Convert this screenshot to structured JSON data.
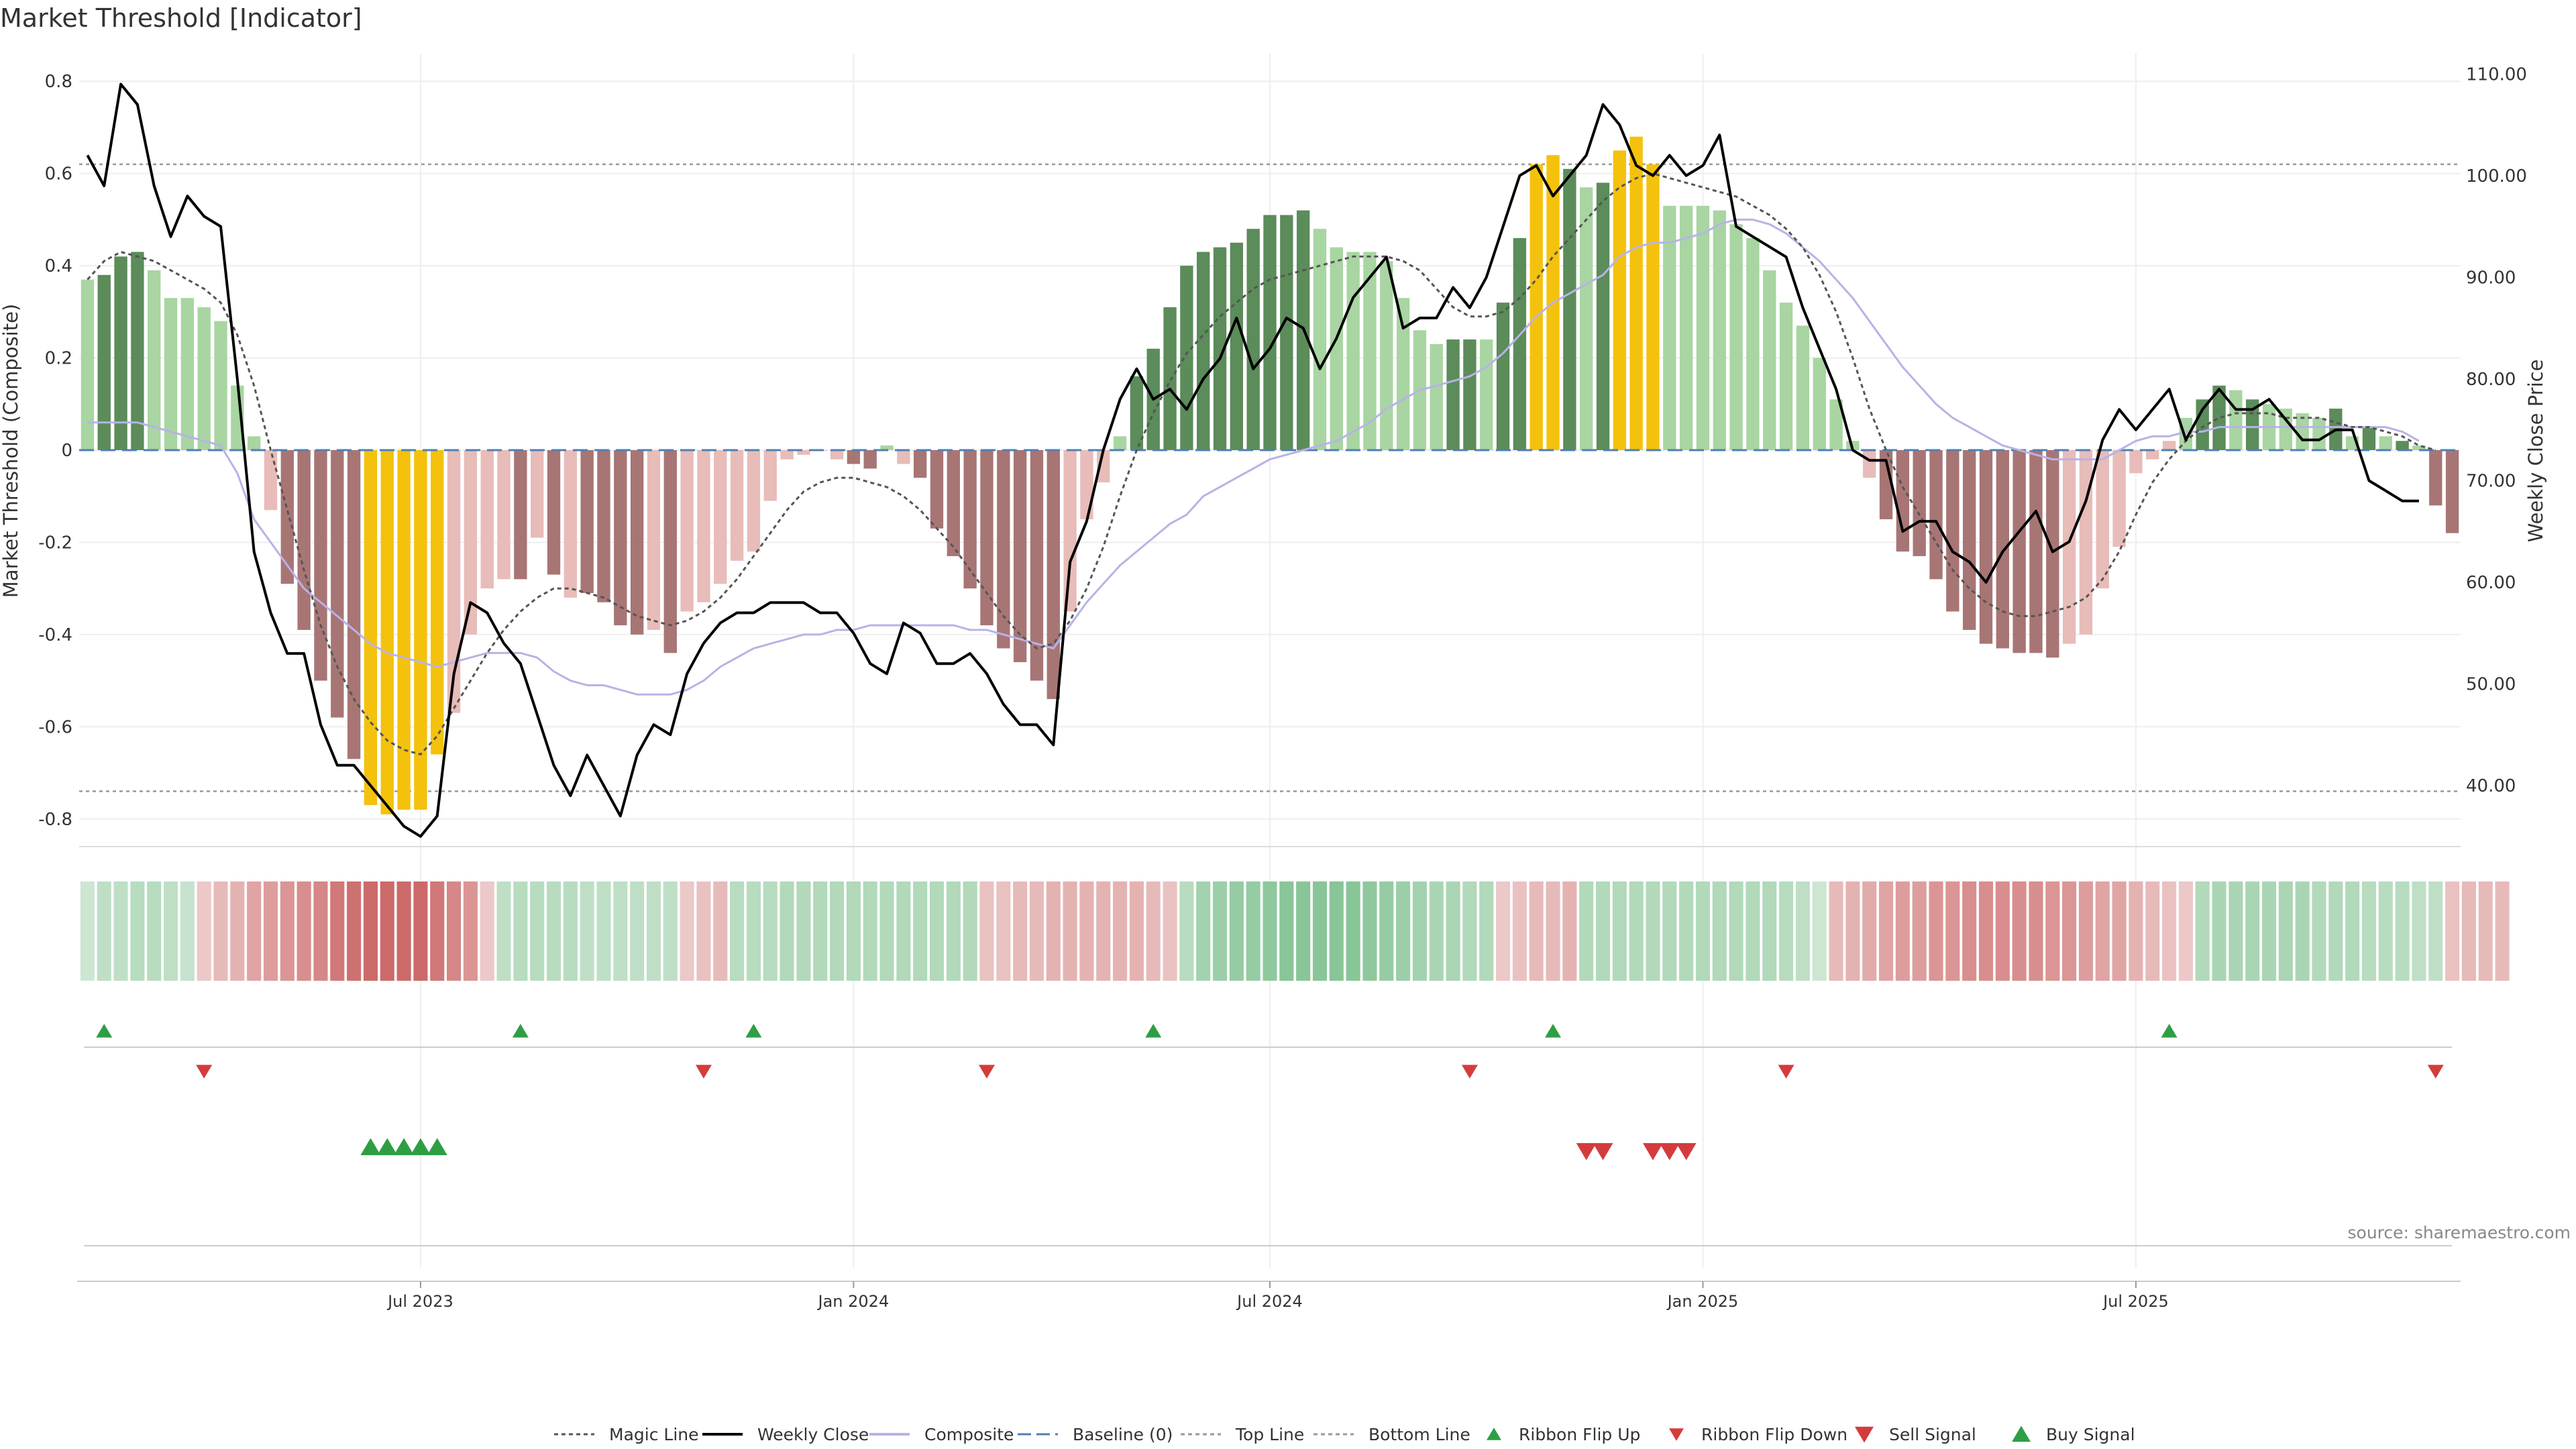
{
  "title": "Market Threshold [Indicator]",
  "source_label": "source: sharemaestro.com",
  "colors": {
    "strong_green": "#5b8c5a",
    "light_green": "#a8d5a2",
    "strong_red": "#a87575",
    "light_red": "#e8bcb8",
    "extreme": "#f4c20d",
    "weekly_close": "#000000",
    "composite": "#b9b2e6",
    "magic_line": "#555555",
    "baseline": "#4f7fb5",
    "threshold_lines": "#999999",
    "buy": "#2e9e44",
    "sell": "#d43c3c",
    "grid": "#eeeeee"
  },
  "chart_data": {
    "type": "bar",
    "title": "Market Threshold [Indicator]",
    "xlabel": "",
    "ylabel": "Market Threshold (Composite)",
    "y2label": "Weekly Close Price",
    "ylim": [
      -0.86,
      0.86
    ],
    "y2lim": [
      34.0,
      112.0
    ],
    "yticks": [
      "0.8",
      "0.6",
      "0.4",
      "0.2",
      "0",
      "-0.2",
      "-0.4",
      "-0.6",
      "-0.8"
    ],
    "yticks_values": [
      0.8,
      0.6,
      0.4,
      0.2,
      0,
      -0.2,
      -0.4,
      -0.6,
      -0.8
    ],
    "y2ticks": [
      "110.00",
      "100.00",
      "90.00",
      "80.00",
      "70.00",
      "60.00",
      "50.00",
      "40.00"
    ],
    "y2ticks_values": [
      110,
      100,
      90,
      80,
      70,
      60,
      50,
      40
    ],
    "xticks": [
      "Jul 2023",
      "Jan 2024",
      "Jul 2024",
      "Jan 2025",
      "Jul 2025"
    ],
    "xticks_weeks": [
      20,
      46,
      71,
      97,
      123
    ],
    "top_line": 0.62,
    "bottom_line": -0.74,
    "bars": [
      0.37,
      0.38,
      0.42,
      0.43,
      0.39,
      0.33,
      0.33,
      0.31,
      0.28,
      0.14,
      0.03,
      -0.13,
      -0.29,
      -0.39,
      -0.5,
      -0.58,
      -0.67,
      -0.77,
      -0.79,
      -0.78,
      -0.78,
      -0.66,
      -0.57,
      -0.4,
      -0.3,
      -0.28,
      -0.28,
      -0.19,
      -0.27,
      -0.32,
      -0.31,
      -0.33,
      -0.38,
      -0.4,
      -0.39,
      -0.44,
      -0.35,
      -0.33,
      -0.29,
      -0.24,
      -0.22,
      -0.11,
      -0.02,
      -0.01,
      0.0,
      -0.02,
      -0.03,
      -0.04,
      0.01,
      -0.03,
      -0.06,
      -0.17,
      -0.23,
      -0.3,
      -0.38,
      -0.43,
      -0.46,
      -0.5,
      -0.54,
      -0.35,
      -0.15,
      -0.07,
      0.03,
      0.16,
      0.22,
      0.31,
      0.4,
      0.43,
      0.44,
      0.45,
      0.48,
      0.51,
      0.51,
      0.52,
      0.48,
      0.44,
      0.43,
      0.43,
      0.41,
      0.33,
      0.26,
      0.23,
      0.24,
      0.24,
      0.24,
      0.32,
      0.46,
      0.62,
      0.64,
      0.61,
      0.57,
      0.58,
      0.65,
      0.68,
      0.62,
      0.53,
      0.53,
      0.53,
      0.52,
      0.49,
      0.46,
      0.39,
      0.32,
      0.27,
      0.2,
      0.11,
      0.02,
      -0.06,
      -0.15,
      -0.22,
      -0.23,
      -0.28,
      -0.35,
      -0.39,
      -0.42,
      -0.43,
      -0.44,
      -0.44,
      -0.45,
      -0.42,
      -0.4,
      -0.3,
      -0.21,
      -0.05,
      -0.02,
      0.02,
      0.07,
      0.11,
      0.14,
      0.13,
      0.11,
      0.1,
      0.09,
      0.08,
      0.07,
      0.09,
      0.03,
      0.05,
      0.03,
      0.02,
      0.01,
      -0.12,
      -0.18
    ],
    "bar_colors": [
      "light_green",
      "strong_green",
      "strong_green",
      "strong_green",
      "light_green",
      "light_green",
      "light_green",
      "light_green",
      "light_green",
      "light_green",
      "light_green",
      "light_red",
      "strong_red",
      "strong_red",
      "strong_red",
      "strong_red",
      "strong_red",
      "extreme",
      "extreme",
      "extreme",
      "extreme",
      "extreme",
      "light_red",
      "light_red",
      "light_red",
      "light_red",
      "strong_red",
      "light_red",
      "strong_red",
      "light_red",
      "strong_red",
      "strong_red",
      "strong_red",
      "strong_red",
      "light_red",
      "strong_red",
      "light_red",
      "light_red",
      "light_red",
      "light_red",
      "light_red",
      "light_red",
      "light_red",
      "light_red",
      "light_red",
      "light_red",
      "strong_red",
      "strong_red",
      "light_green",
      "light_red",
      "strong_red",
      "strong_red",
      "strong_red",
      "strong_red",
      "strong_red",
      "strong_red",
      "strong_red",
      "strong_red",
      "strong_red",
      "light_red",
      "light_red",
      "light_red",
      "light_green",
      "strong_green",
      "strong_green",
      "strong_green",
      "strong_green",
      "strong_green",
      "strong_green",
      "strong_green",
      "strong_green",
      "strong_green",
      "strong_green",
      "strong_green",
      "light_green",
      "light_green",
      "light_green",
      "light_green",
      "light_green",
      "light_green",
      "light_green",
      "light_green",
      "strong_green",
      "strong_green",
      "light_green",
      "strong_green",
      "strong_green",
      "extreme",
      "extreme",
      "strong_green",
      "light_green",
      "strong_green",
      "extreme",
      "extreme",
      "extreme",
      "light_green",
      "light_green",
      "light_green",
      "light_green",
      "light_green",
      "light_green",
      "light_green",
      "light_green",
      "light_green",
      "light_green",
      "light_green",
      "light_green",
      "light_red",
      "strong_red",
      "strong_red",
      "strong_red",
      "strong_red",
      "strong_red",
      "strong_red",
      "strong_red",
      "strong_red",
      "strong_red",
      "strong_red",
      "strong_red",
      "light_red",
      "light_red",
      "light_red",
      "light_red",
      "light_red",
      "light_red",
      "light_red",
      "light_green",
      "strong_green",
      "strong_green",
      "light_green",
      "strong_green",
      "light_green",
      "light_green",
      "light_green",
      "light_green",
      "strong_green",
      "light_green",
      "strong_green",
      "light_green",
      "strong_green",
      "light_green",
      "strong_red",
      "strong_red"
    ],
    "series": [
      {
        "name": "Weekly Close",
        "axis": "right",
        "values": [
          102,
          99,
          109,
          107,
          99,
          94,
          98,
          96,
          95,
          80,
          63,
          57,
          53,
          53,
          46,
          42,
          42,
          40,
          38,
          36,
          35,
          37,
          51,
          58,
          57,
          54,
          52,
          47,
          42,
          39,
          43,
          40,
          37,
          43,
          46,
          45,
          51,
          54,
          56,
          57,
          57,
          58,
          58,
          58,
          57,
          57,
          55,
          52,
          51,
          56,
          55,
          52,
          52,
          53,
          51,
          48,
          46,
          46,
          44,
          62,
          66,
          73,
          78,
          81,
          78,
          79,
          77,
          80,
          82,
          86,
          81,
          83,
          86,
          85,
          81,
          84,
          88,
          90,
          92,
          85,
          86,
          86,
          89,
          87,
          90,
          95,
          100,
          101,
          98,
          100,
          102,
          107,
          105,
          101,
          100,
          102,
          100,
          101,
          104,
          95,
          94,
          93,
          92,
          87,
          83,
          79,
          73,
          72,
          72,
          65,
          66,
          66,
          63,
          62,
          60,
          63,
          65,
          67,
          63,
          64,
          68,
          74,
          77,
          75,
          77,
          79,
          74,
          77,
          79,
          77,
          77,
          78,
          76,
          74,
          74,
          75,
          75,
          70,
          69,
          68,
          68
        ]
      },
      {
        "name": "Composite",
        "values": [
          0.06,
          0.06,
          0.06,
          0.06,
          0.05,
          0.04,
          0.03,
          0.02,
          0.01,
          -0.05,
          -0.15,
          -0.2,
          -0.25,
          -0.3,
          -0.33,
          -0.36,
          -0.39,
          -0.42,
          -0.44,
          -0.45,
          -0.46,
          -0.47,
          -0.46,
          -0.45,
          -0.44,
          -0.44,
          -0.44,
          -0.45,
          -0.48,
          -0.5,
          -0.51,
          -0.51,
          -0.52,
          -0.53,
          -0.53,
          -0.53,
          -0.52,
          -0.5,
          -0.47,
          -0.45,
          -0.43,
          -0.42,
          -0.41,
          -0.4,
          -0.4,
          -0.39,
          -0.39,
          -0.38,
          -0.38,
          -0.38,
          -0.38,
          -0.38,
          -0.38,
          -0.39,
          -0.39,
          -0.4,
          -0.41,
          -0.42,
          -0.43,
          -0.38,
          -0.33,
          -0.29,
          -0.25,
          -0.22,
          -0.19,
          -0.16,
          -0.14,
          -0.1,
          -0.08,
          -0.06,
          -0.04,
          -0.02,
          -0.01,
          0.0,
          0.01,
          0.02,
          0.04,
          0.06,
          0.09,
          0.11,
          0.13,
          0.14,
          0.15,
          0.16,
          0.18,
          0.21,
          0.25,
          0.29,
          0.32,
          0.34,
          0.36,
          0.38,
          0.42,
          0.44,
          0.45,
          0.45,
          0.46,
          0.47,
          0.49,
          0.5,
          0.5,
          0.49,
          0.47,
          0.44,
          0.41,
          0.37,
          0.33,
          0.28,
          0.23,
          0.18,
          0.14,
          0.1,
          0.07,
          0.05,
          0.03,
          0.01,
          0.0,
          -0.01,
          -0.02,
          -0.02,
          -0.02,
          -0.02,
          0.0,
          0.02,
          0.03,
          0.03,
          0.04,
          0.04,
          0.05,
          0.05,
          0.05,
          0.05,
          0.05,
          0.05,
          0.05,
          0.05,
          0.05,
          0.05,
          0.05,
          0.04,
          0.02
        ]
      },
      {
        "name": "Magic Line",
        "values": [
          0.37,
          0.41,
          0.43,
          0.42,
          0.41,
          0.39,
          0.37,
          0.35,
          0.32,
          0.25,
          0.14,
          0.0,
          -0.13,
          -0.26,
          -0.38,
          -0.47,
          -0.54,
          -0.59,
          -0.63,
          -0.65,
          -0.66,
          -0.62,
          -0.56,
          -0.5,
          -0.44,
          -0.39,
          -0.35,
          -0.32,
          -0.3,
          -0.3,
          -0.31,
          -0.32,
          -0.34,
          -0.36,
          -0.37,
          -0.38,
          -0.37,
          -0.35,
          -0.32,
          -0.28,
          -0.23,
          -0.18,
          -0.13,
          -0.09,
          -0.07,
          -0.06,
          -0.06,
          -0.07,
          -0.08,
          -0.1,
          -0.13,
          -0.17,
          -0.21,
          -0.26,
          -0.31,
          -0.36,
          -0.4,
          -0.43,
          -0.42,
          -0.37,
          -0.3,
          -0.21,
          -0.1,
          0.0,
          0.08,
          0.15,
          0.21,
          0.25,
          0.29,
          0.32,
          0.35,
          0.37,
          0.38,
          0.39,
          0.4,
          0.41,
          0.42,
          0.42,
          0.42,
          0.41,
          0.39,
          0.35,
          0.31,
          0.29,
          0.29,
          0.3,
          0.33,
          0.37,
          0.42,
          0.46,
          0.5,
          0.54,
          0.57,
          0.59,
          0.6,
          0.59,
          0.58,
          0.57,
          0.56,
          0.55,
          0.53,
          0.51,
          0.48,
          0.44,
          0.38,
          0.3,
          0.2,
          0.09,
          0.0,
          -0.08,
          -0.14,
          -0.2,
          -0.26,
          -0.3,
          -0.33,
          -0.35,
          -0.36,
          -0.36,
          -0.35,
          -0.34,
          -0.32,
          -0.28,
          -0.22,
          -0.14,
          -0.07,
          -0.02,
          0.02,
          0.05,
          0.07,
          0.08,
          0.08,
          0.08,
          0.07,
          0.07,
          0.07,
          0.06,
          0.05,
          0.05,
          0.04,
          0.03,
          0.01,
          0.0
        ]
      }
    ],
    "ribbon": [
      0.2,
      0.3,
      0.3,
      0.35,
      0.35,
      0.3,
      0.25,
      -0.2,
      -0.3,
      -0.35,
      -0.45,
      -0.5,
      -0.55,
      -0.6,
      -0.65,
      -0.75,
      -0.8,
      -0.85,
      -0.85,
      -0.85,
      -0.85,
      -0.75,
      -0.65,
      -0.55,
      -0.2,
      0.3,
      0.35,
      0.35,
      0.35,
      0.35,
      0.3,
      0.3,
      0.3,
      0.3,
      0.3,
      0.3,
      -0.2,
      -0.25,
      -0.3,
      0.35,
      0.35,
      0.35,
      0.4,
      0.4,
      0.4,
      0.4,
      0.4,
      0.4,
      0.4,
      0.4,
      0.4,
      0.4,
      0.4,
      0.4,
      -0.25,
      -0.25,
      -0.3,
      -0.3,
      -0.35,
      -0.35,
      -0.35,
      -0.35,
      -0.35,
      -0.35,
      -0.3,
      -0.25,
      0.35,
      0.5,
      0.55,
      0.6,
      0.6,
      0.65,
      0.7,
      0.7,
      0.7,
      0.7,
      0.7,
      0.65,
      0.6,
      0.55,
      0.5,
      0.45,
      0.45,
      0.4,
      0.4,
      -0.2,
      -0.25,
      -0.3,
      -0.3,
      -0.35,
      0.4,
      0.4,
      0.4,
      0.4,
      0.4,
      0.4,
      0.4,
      0.4,
      0.4,
      0.4,
      0.4,
      0.4,
      0.35,
      0.3,
      0.2,
      -0.3,
      -0.35,
      -0.4,
      -0.45,
      -0.5,
      -0.5,
      -0.55,
      -0.55,
      -0.6,
      -0.6,
      -0.6,
      -0.6,
      -0.6,
      -0.55,
      -0.55,
      -0.5,
      -0.45,
      -0.45,
      -0.35,
      -0.3,
      -0.25,
      -0.2,
      0.4,
      0.45,
      0.45,
      0.45,
      0.45,
      0.45,
      0.45,
      0.4,
      0.4,
      0.4,
      0.35,
      0.35,
      0.35,
      0.3,
      0.3,
      -0.25,
      -0.3,
      -0.3,
      -0.3
    ],
    "signals": {
      "ribbon_flip_up": [
        1,
        26,
        40,
        64,
        88,
        125
      ],
      "ribbon_flip_down": [
        7,
        37,
        54,
        83,
        102,
        141
      ],
      "buy_signal": [
        17,
        18,
        19,
        20,
        21
      ],
      "sell_signal": [
        90,
        91,
        94,
        95,
        96
      ]
    },
    "legend": [
      "Magic Line",
      "Weekly Close",
      "Composite",
      "Baseline (0)",
      "Top Line",
      "Bottom Line",
      "Ribbon Flip Up",
      "Ribbon Flip Down",
      "Sell Signal",
      "Buy Signal"
    ],
    "legend_placement": "bottom-center",
    "grid": true
  }
}
